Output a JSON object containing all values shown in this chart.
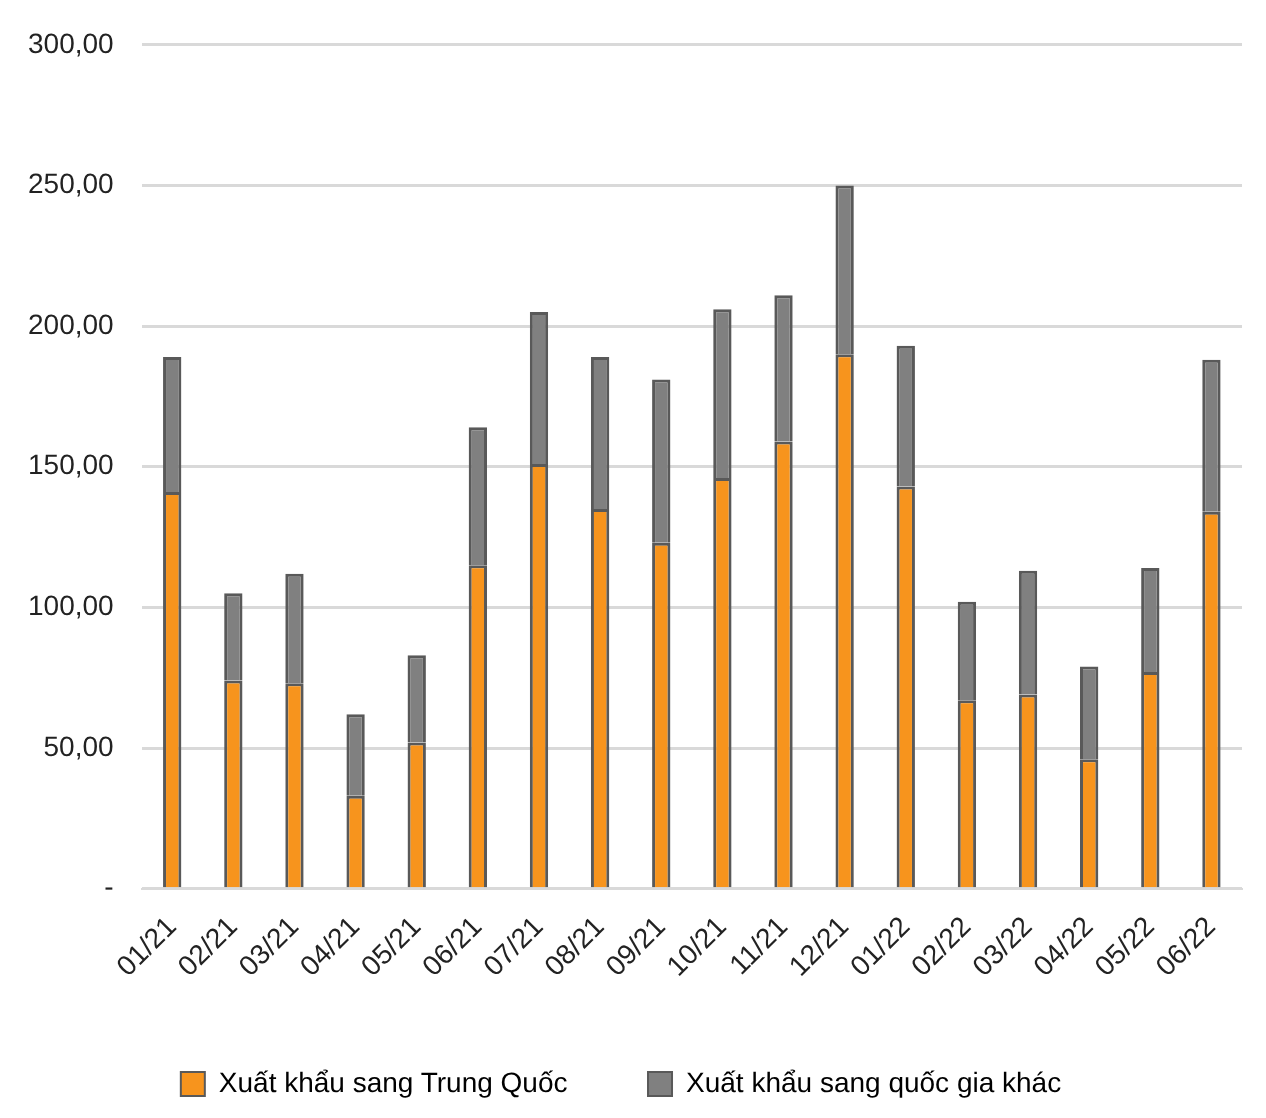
{
  "chart_data": {
    "type": "bar",
    "stacked": true,
    "categories": [
      "01/21",
      "02/21",
      "03/21",
      "04/21",
      "05/21",
      "06/21",
      "07/21",
      "08/21",
      "09/21",
      "10/21",
      "11/21",
      "12/21",
      "01/22",
      "02/22",
      "03/22",
      "04/22",
      "05/22",
      "06/22"
    ],
    "series": [
      {
        "name": "Xuất khẩu sang Trung Quốc",
        "color": "#f7941d",
        "values": [
          141,
          74,
          73,
          33,
          52,
          115,
          151,
          135,
          123,
          146,
          159,
          190,
          143,
          67,
          69,
          46,
          77,
          134
        ]
      },
      {
        "name": "Xuất khẩu sang quốc gia khác",
        "color": "#808080",
        "values": [
          48,
          31,
          39,
          29,
          31,
          49,
          54,
          54,
          58,
          60,
          52,
          60,
          50,
          35,
          44,
          33,
          37,
          54
        ]
      }
    ],
    "ylim": [
      0,
      300
    ],
    "yticks": [
      {
        "value": 0,
        "label": "-"
      },
      {
        "value": 50,
        "label": "50,00"
      },
      {
        "value": 100,
        "label": "100,00"
      },
      {
        "value": 150,
        "label": "150,00"
      },
      {
        "value": 200,
        "label": "200,00"
      },
      {
        "value": 250,
        "label": "250,00"
      },
      {
        "value": 300,
        "label": "300,00"
      }
    ],
    "grid": "y",
    "legend": "bottom"
  }
}
